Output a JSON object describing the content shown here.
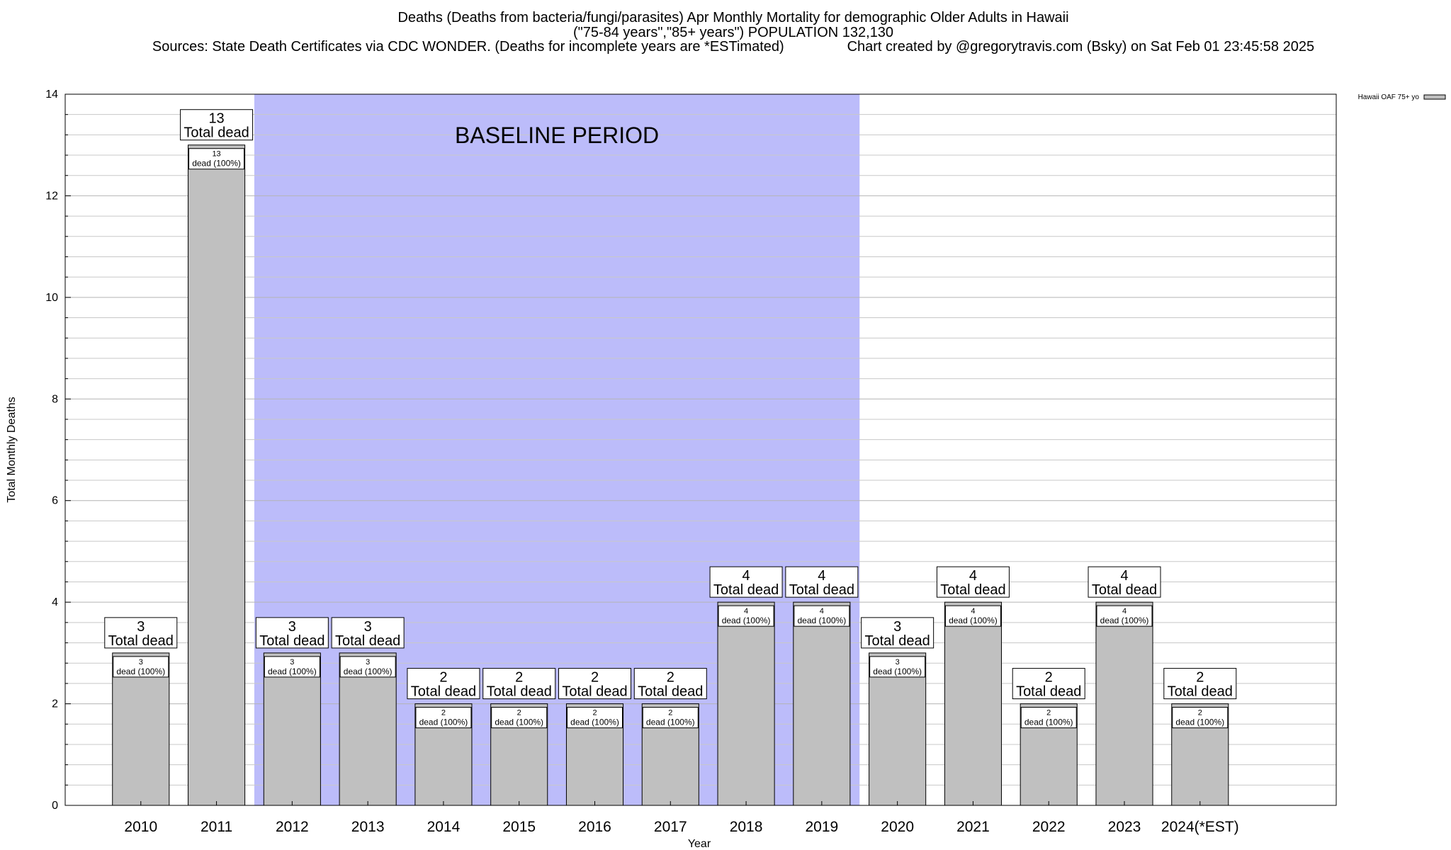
{
  "title_lines": [
    "Deaths (Deaths from bacteria/fungi/parasites) Apr Monthly Mortality for demographic Older Adults in Hawaii",
    "(\"75-84 years\",\"85+ years\") POPULATION 132,130",
    "Sources: State Death Certificates via CDC WONDER. (Deaths for incomplete years are *ESTimated)                Chart created by @gregorytravis.com (Bsky) on Sat Feb 01 23:45:58 2025"
  ],
  "baseline_label": "BASELINE PERIOD",
  "legend": {
    "entry": "Hawaii OAF 75+ yo",
    "swatch_color": "#c0c0c0"
  },
  "colors": {
    "bar": "#c0c0c0",
    "baseline_band": "#bcbcfa",
    "grid": "#c8c8c8"
  },
  "chart_data": {
    "type": "bar",
    "xlabel": "Year",
    "ylabel": "Total Monthly Deaths",
    "ylim": [
      0,
      14
    ],
    "y_ticks": [
      0,
      2,
      4,
      6,
      8,
      10,
      12,
      14
    ],
    "grid": true,
    "legend_position": "top-right",
    "baseline_period": [
      "2012",
      "2019"
    ],
    "categories": [
      "2010",
      "2011",
      "2012",
      "2013",
      "2014",
      "2015",
      "2016",
      "2017",
      "2018",
      "2019",
      "2020",
      "2021",
      "2022",
      "2023",
      "2024(*EST)"
    ],
    "series": [
      {
        "name": "Hawaii OAF 75+ yo",
        "values": [
          3,
          13,
          3,
          3,
          2,
          2,
          2,
          2,
          4,
          4,
          3,
          4,
          2,
          4,
          2
        ]
      }
    ],
    "top_label_suffix": "Total dead",
    "inner_label_suffix": "dead (100%)"
  }
}
